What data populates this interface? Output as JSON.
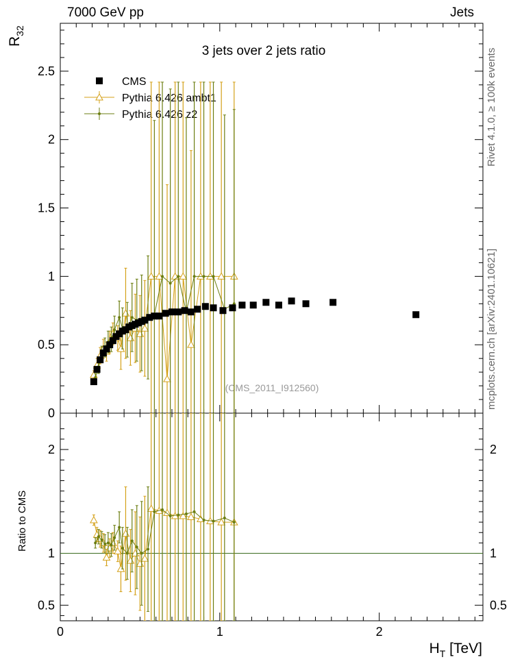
{
  "header": {
    "left": "7000 GeV pp",
    "right": "Jets"
  },
  "side_labels": {
    "rivet": "Rivet 4.1.0, ≥ 100k events",
    "mcplots": "mcplots.cern.ch [arXiv:2401.10621]"
  },
  "colors": {
    "cms": "#000000",
    "ambt1": "#d4a017",
    "z2": "#6b7d10",
    "reference_line": "#3a6b1e"
  },
  "chart_data": {
    "type": "scatter",
    "title": "3 jets over 2 jets ratio",
    "watermark": "(CMS_2011_I912560)",
    "xlabel_main": "H",
    "xlabel_sub": "T",
    "xlabel_unit": " [TeV]",
    "ylabel_main": "R",
    "ylabel_sub": "32",
    "ratio_ylabel": "Ratio to CMS",
    "xlim": [
      0,
      2.65
    ],
    "ylim_main": [
      0,
      2.85
    ],
    "ylim_ratio": [
      0.35,
      2.35
    ],
    "x_ticks": [
      {
        "v": 0,
        "label": "0"
      },
      {
        "v": 1,
        "label": "1"
      },
      {
        "v": 2,
        "label": "2"
      }
    ],
    "y_ticks_main": [
      {
        "v": 0,
        "label": "0"
      },
      {
        "v": 0.5,
        "label": "0.5"
      },
      {
        "v": 1,
        "label": "1"
      },
      {
        "v": 1.5,
        "label": "1.5"
      },
      {
        "v": 2,
        "label": "2"
      },
      {
        "v": 2.5,
        "label": "2.5"
      }
    ],
    "y_ticks_ratio": [
      {
        "v": 0.5,
        "label": "0.5"
      },
      {
        "v": 1,
        "label": "1"
      },
      {
        "v": 2,
        "label": "2"
      }
    ],
    "legend": [
      "CMS",
      "Pythia 6.426 ambt1",
      "Pythia 6.426 z2"
    ],
    "cms": {
      "name": "CMS",
      "x": [
        0.21,
        0.23,
        0.25,
        0.27,
        0.29,
        0.31,
        0.33,
        0.35,
        0.37,
        0.39,
        0.41,
        0.43,
        0.45,
        0.47,
        0.49,
        0.51,
        0.53,
        0.56,
        0.59,
        0.62,
        0.66,
        0.7,
        0.74,
        0.78,
        0.82,
        0.86,
        0.91,
        0.96,
        1.02,
        1.08,
        1.14,
        1.21,
        1.29,
        1.37,
        1.45,
        1.54,
        1.71,
        2.23
      ],
      "y": [
        0.23,
        0.32,
        0.39,
        0.44,
        0.47,
        0.5,
        0.53,
        0.56,
        0.58,
        0.6,
        0.61,
        0.63,
        0.64,
        0.65,
        0.66,
        0.67,
        0.68,
        0.7,
        0.71,
        0.71,
        0.73,
        0.74,
        0.74,
        0.75,
        0.74,
        0.76,
        0.78,
        0.77,
        0.75,
        0.77,
        0.79,
        0.79,
        0.81,
        0.79,
        0.82,
        0.8,
        0.81,
        0.72
      ]
    },
    "ambt1": {
      "name": "Pythia 6.426 ambt1",
      "x": [
        0.21,
        0.23,
        0.25,
        0.27,
        0.29,
        0.31,
        0.33,
        0.36,
        0.38,
        0.41,
        0.44,
        0.47,
        0.5,
        0.53,
        0.57,
        0.62,
        0.67,
        0.72,
        0.77,
        0.82,
        0.88,
        0.94,
        1.01,
        1.09
      ],
      "y": [
        0.28,
        0.35,
        0.42,
        0.47,
        0.45,
        0.52,
        0.58,
        0.55,
        0.47,
        0.73,
        0.55,
        0.62,
        0.58,
        0.62,
        1.0,
        1.0,
        0.25,
        1.0,
        1.0,
        0.5,
        1.0,
        1.0,
        1.0,
        1.0
      ],
      "err": [
        0.03,
        0.05,
        0.06,
        0.07,
        0.07,
        0.08,
        0.08,
        0.09,
        0.15,
        0.33,
        0.2,
        0.25,
        0.28,
        0.35,
        1.42,
        1.42,
        1.42,
        1.42,
        1.42,
        1.42,
        1.42,
        1.42,
        1.42,
        1.42
      ],
      "ratio": [
        1.32,
        1.18,
        1.14,
        1.1,
        0.96,
        1.05,
        1.1,
        1.02,
        0.85,
        1.19,
        0.93,
        1.0,
        0.9,
        0.95,
        1.43,
        1.41,
        1.39,
        1.36,
        1.36,
        1.35,
        1.33,
        1.31,
        1.3,
        1.3
      ],
      "ratio_err": [
        0.05,
        0.07,
        0.08,
        0.09,
        0.08,
        0.09,
        0.1,
        0.1,
        0.22,
        0.45,
        0.3,
        0.4,
        0.45,
        0.6,
        2.2,
        2.2,
        2.2,
        2.2,
        2.2,
        2.2,
        2.2,
        2.2,
        2.2,
        2.2
      ]
    },
    "z2": {
      "name": "Pythia 6.426 z2",
      "x": [
        0.22,
        0.24,
        0.26,
        0.28,
        0.3,
        0.32,
        0.34,
        0.37,
        0.39,
        0.42,
        0.45,
        0.48,
        0.51,
        0.55,
        0.59,
        0.64,
        0.69,
        0.74,
        0.79,
        0.84,
        0.9,
        0.96,
        1.03,
        1.09
      ],
      "y": [
        0.26,
        0.34,
        0.43,
        0.48,
        0.52,
        0.54,
        0.61,
        0.7,
        0.62,
        0.61,
        0.7,
        0.68,
        0.66,
        0.7,
        0.72,
        1.0,
        0.95,
        1.0,
        0.74,
        1.0,
        1.0,
        1.0,
        0.76,
        0.8
      ],
      "err": [
        0.03,
        0.05,
        0.06,
        0.07,
        0.08,
        0.09,
        0.1,
        0.12,
        0.15,
        0.2,
        0.25,
        0.3,
        0.35,
        0.45,
        1.42,
        1.42,
        1.42,
        1.42,
        1.42,
        1.42,
        1.42,
        1.42,
        1.42,
        1.42
      ],
      "ratio": [
        1.1,
        1.16,
        1.13,
        1.09,
        1.1,
        1.08,
        1.15,
        1.25,
        1.05,
        1.0,
        1.12,
        1.06,
        1.0,
        1.04,
        1.4,
        1.42,
        1.36,
        1.37,
        1.38,
        1.4,
        1.32,
        1.31,
        1.34,
        1.3
      ],
      "ratio_err": [
        0.05,
        0.07,
        0.08,
        0.09,
        0.1,
        0.11,
        0.12,
        0.15,
        0.2,
        0.25,
        0.3,
        0.4,
        0.5,
        0.6,
        2.2,
        2.2,
        2.2,
        2.2,
        2.2,
        2.2,
        2.2,
        2.2,
        2.2,
        2.2
      ]
    }
  }
}
